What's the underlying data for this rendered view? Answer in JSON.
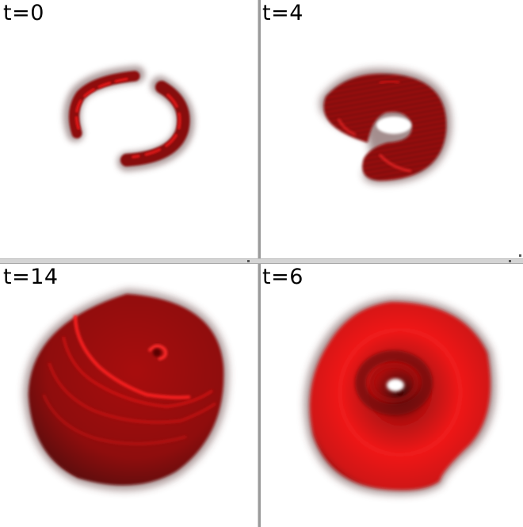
{
  "panels": {
    "top_left": {
      "label": "t=0"
    },
    "top_right": {
      "label": "t=4"
    },
    "bottom_left": {
      "label": "t=14"
    },
    "bottom_right": {
      "label": "t=6"
    }
  },
  "colors": {
    "background": "#ffffff",
    "shape_dark": "#5a0606",
    "shape_mid": "#a30f0f",
    "shape_bright": "#ff2020",
    "divider": "#9a9a9a"
  }
}
